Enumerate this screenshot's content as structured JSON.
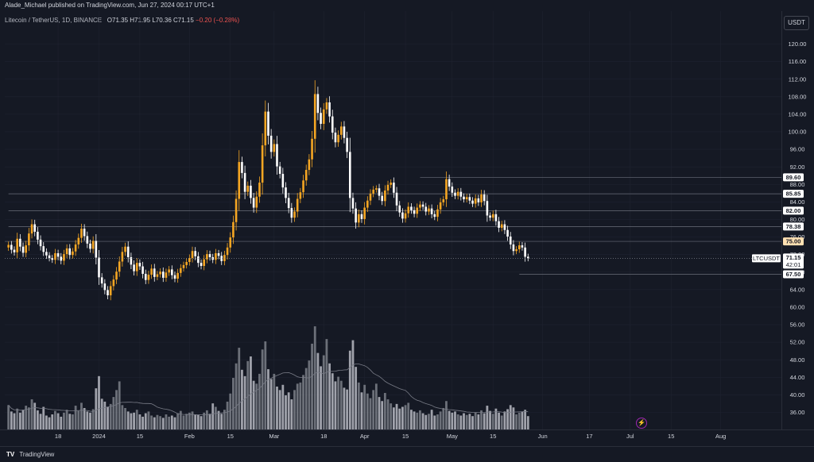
{
  "header": {
    "published_line": "Alade_Michael published on TradingView.com, Jun 27, 2024 00:17 UTC+1"
  },
  "legend": {
    "symbol": "Litecoin / TetherUS, 1D, BINANCE",
    "open": "O71.35",
    "high": "H71.95",
    "low": "L70.36",
    "close": "C71.15",
    "change": "−0.20 (−0.28%)"
  },
  "currency_button": "USDT",
  "footer": {
    "logo": "TV",
    "brand": "TradingView"
  },
  "colors": {
    "background": "#151924",
    "up_candle": "#f5a623",
    "down_candle": "#ffffff",
    "grid": "#1f2330",
    "level_line": "#6b6f7a",
    "volume_bar": "#9598a1",
    "volume_ma": "#787b86",
    "price_tag": "#ffffff",
    "highlight_tag": "#ffe0b2"
  },
  "chart_data": {
    "type": "candlestick",
    "symbol": "LTCUSDT",
    "y_axis": {
      "ticks": [
        120,
        116,
        112,
        108,
        104,
        100,
        96,
        92,
        88,
        84,
        80,
        76,
        72,
        68,
        64,
        60,
        56,
        52,
        48,
        44,
        40,
        36
      ],
      "labels": [
        "120.00",
        "116.00",
        "112.00",
        "108.00",
        "104.00",
        "100.00",
        "96.00",
        "92.00",
        "88.00",
        "84.00",
        "80.00",
        "76.00",
        "72.00",
        "68.00",
        "64.00",
        "60.00",
        "56.00",
        "52.00",
        "48.00",
        "44.00",
        "40.00",
        "36.00"
      ],
      "range": [
        33.3,
        123.1
      ]
    },
    "x_axis": {
      "ticks": [
        "18",
        "2024",
        "15",
        "Feb",
        "15",
        "Mar",
        "18",
        "Apr",
        "15",
        "May",
        "15",
        "Jun",
        "17",
        "Jul",
        "15",
        "Aug"
      ],
      "tick_index": [
        -14,
        0,
        14,
        31,
        45,
        60,
        77,
        91,
        105,
        121,
        135,
        152,
        168,
        182,
        196,
        213
      ],
      "start_date": "2023-12-01",
      "end_date": "2024-08-13"
    },
    "levels": [
      {
        "price": 89.6,
        "label": "89.60",
        "from_index": 141,
        "highlight": false
      },
      {
        "price": 85.85,
        "label": "85.85",
        "from_index": 0,
        "highlight": false
      },
      {
        "price": 82.0,
        "label": "82.00",
        "from_index": 0,
        "highlight": false
      },
      {
        "price": 78.38,
        "label": "78.38",
        "from_index": 0,
        "highlight": false
      },
      {
        "price": 75.0,
        "label": "75.00",
        "from_index": -31,
        "highlight": true
      },
      {
        "price": 67.5,
        "label": "67.50",
        "from_index": 175,
        "highlight": false
      }
    ],
    "current": {
      "symbol": "LTCUSDT",
      "price": "71.15",
      "countdown": "42:01"
    },
    "closes": [
      74.2,
      73.1,
      72.5,
      75.6,
      73.8,
      72.4,
      74.1,
      76.8,
      78.9,
      77.2,
      75.4,
      73.9,
      72.6,
      71.8,
      71.2,
      70.8,
      72.3,
      71.5,
      70.6,
      72.1,
      73.4,
      71.9,
      72.7,
      74.3,
      75.8,
      77.9,
      76.2,
      74.5,
      73.3,
      75.1,
      71.3,
      66.8,
      65.4,
      63.9,
      62.7,
      64.8,
      66.3,
      68.1,
      70.4,
      72.6,
      73.8,
      71.4,
      69.7,
      68.2,
      70.1,
      69.3,
      67.6,
      66.2,
      67.4,
      68.8,
      66.9,
      67.5,
      68.1,
      66.7,
      67.9,
      68.6,
      67.3,
      66.5,
      67.8,
      68.9,
      69.6,
      70.3,
      71.2,
      72.8,
      71.6,
      70.1,
      69.4,
      70.9,
      72.1,
      71.4,
      70.8,
      72.3,
      71.7,
      70.5,
      71.9,
      73.6,
      75.9,
      79.4,
      84.7,
      93.1,
      90.6,
      86.3,
      87.7,
      84.9,
      82.7,
      85.2,
      88.4,
      96.9,
      104.6,
      99.1,
      95.4,
      97.2,
      92.1,
      90.4,
      87.3,
      84.9,
      82.6,
      80.4,
      81.8,
      84.7,
      86.2,
      88.9,
      91.3,
      93.7,
      98.4,
      108.6,
      104.3,
      101.8,
      105.1,
      106.7,
      103.5,
      99.8,
      97.6,
      99.3,
      101.2,
      98.6,
      95.4,
      84.9,
      82.5,
      79.3,
      81.2,
      80.1,
      82.7,
      84.3,
      85.9,
      86.8,
      87.1,
      85.4,
      84.2,
      86.6,
      87.9,
      88.4,
      86.1,
      83.2,
      81.6,
      80.2,
      81.4,
      82.9,
      82.1,
      81.3,
      82.7,
      83.4,
      82.9,
      81.8,
      82.5,
      81.2,
      80.6,
      82.3,
      83.9,
      84.6,
      89.2,
      87.5,
      86.1,
      85.4,
      86.3,
      85.2,
      84.6,
      85.1,
      84.3,
      83.6,
      84.8,
      83.9,
      85.7,
      84.2,
      80.9,
      80.4,
      81.2,
      79.6,
      78.1,
      78.9,
      77.6,
      76.1,
      74.3,
      72.8,
      73.2,
      74.1,
      73.6,
      71.5,
      71.15
    ],
    "volumes": [
      4.2,
      3.1,
      2.8,
      3.6,
      2.9,
      3.4,
      4.1,
      3.8,
      5.2,
      4.6,
      3.3,
      2.7,
      3.9,
      2.4,
      2.1,
      2.6,
      3.2,
      2.8,
      2.2,
      2.9,
      3.4,
      2.7,
      2.6,
      4.1,
      3.2,
      4.6,
      3.7,
      3.1,
      2.9,
      3.5,
      7.1,
      9.2,
      5.3,
      4.8,
      3.9,
      4.4,
      5.6,
      6.8,
      8.3,
      4.2,
      3.7,
      3.1,
      2.8,
      2.9,
      3.4,
      2.6,
      2.2,
      2.8,
      3.1,
      2.4,
      2.1,
      2.5,
      2.3,
      2.0,
      2.6,
      2.2,
      2.4,
      2.1,
      2.8,
      3.2,
      2.4,
      2.7,
      2.9,
      3.1,
      2.6,
      2.5,
      2.3,
      2.9,
      3.3,
      2.7,
      4.5,
      3.9,
      3.2,
      2.7,
      3.4,
      4.8,
      6.2,
      8.9,
      11.4,
      14.1,
      10.3,
      9.2,
      11.8,
      12.6,
      8.4,
      7.9,
      9.6,
      13.8,
      15.2,
      10.4,
      8.7,
      9.6,
      7.4,
      6.8,
      7.7,
      5.9,
      6.4,
      5.2,
      6.8,
      7.9,
      8.1,
      9.4,
      10.6,
      11.9,
      14.8,
      17.8,
      13.2,
      10.9,
      12.8,
      15.6,
      11.4,
      9.7,
      8.3,
      9.1,
      8.4,
      7.2,
      6.9,
      13.6,
      15.4,
      10.8,
      8.1,
      6.4,
      7.7,
      6.2,
      5.4,
      6.8,
      7.9,
      5.6,
      4.9,
      6.3,
      5.2,
      4.5,
      3.8,
      4.4,
      3.6,
      3.9,
      4.2,
      4.6,
      3.4,
      3.1,
      2.9,
      3.3,
      2.8,
      2.5,
      2.7,
      3.4,
      2.4,
      2.6,
      3.1,
      3.7,
      4.9,
      3.2,
      2.9,
      3.1,
      2.6,
      2.4,
      2.8,
      2.5,
      2.7,
      2.3,
      2.9,
      2.6,
      3.3,
      2.8,
      4.1,
      3.2,
      2.7,
      3.6,
      2.9,
      2.4,
      3.1,
      3.5,
      4.2,
      3.8,
      2.6,
      2.9,
      3.1,
      3.4,
      2.3
    ]
  }
}
